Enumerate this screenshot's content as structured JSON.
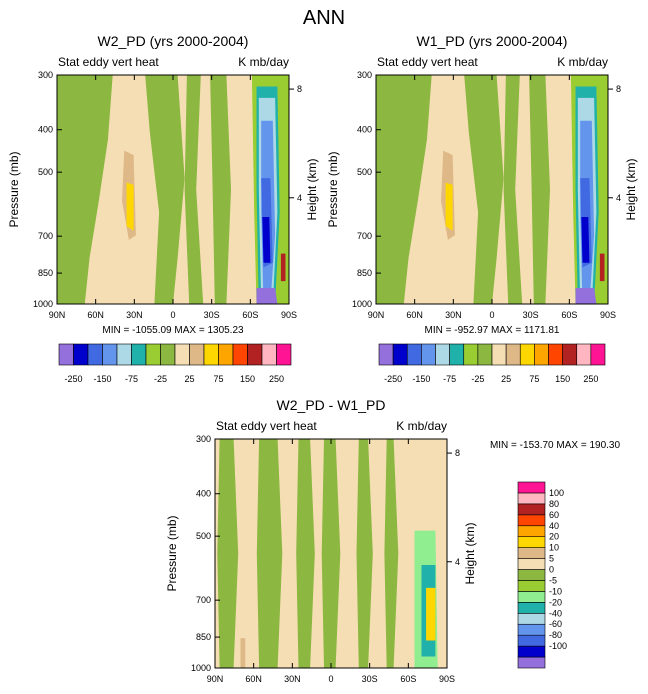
{
  "figure": {
    "title": "ANN"
  },
  "palettes": {
    "abs": [
      "#9370db",
      "#0000cd",
      "#4169e1",
      "#6495ed",
      "#add8e6",
      "#20b2aa",
      "#9acd32",
      "#8cb841",
      "#f5deb3",
      "#deb887",
      "#ffd700",
      "#ffa500",
      "#ff4500",
      "#b22222",
      "#ffb6c1",
      "#ff1493"
    ],
    "diff": [
      "#9370db",
      "#0000cd",
      "#4169e1",
      "#6495ed",
      "#add8e6",
      "#20b2aa",
      "#90ee90",
      "#9acd32",
      "#8cb841",
      "#f5deb3",
      "#deb887",
      "#ffd700",
      "#ffa500",
      "#ff4500",
      "#b22222",
      "#ffb6c1",
      "#ff1493"
    ]
  },
  "chart_data": [
    {
      "id": "p1",
      "type": "contour",
      "title": "W2_PD (yrs 2000-2004)",
      "subtitle_left": "Stat eddy vert heat",
      "subtitle_right": "K mb/day",
      "ylabel": "Pressure (mb)",
      "ylabel_right": "Height (km)",
      "xticks": [
        "90N",
        "60N",
        "30N",
        "0",
        "30S",
        "60S",
        "90S"
      ],
      "yticks": [
        "300",
        "400",
        "500",
        "700",
        "850",
        "1000"
      ],
      "ytick_values": [
        300,
        400,
        500,
        700,
        850,
        1000
      ],
      "ylim": [
        300,
        1000
      ],
      "right_ticks": [
        "8",
        "4"
      ],
      "right_tick_values_km": [
        8,
        4
      ],
      "minmax": "MIN = -1055.09   MAX = 1305.23",
      "colorbar_labels": [
        "-250",
        "-150",
        "-75",
        "-25",
        "25",
        "75",
        "150",
        "250"
      ],
      "levels": [
        -250,
        -200,
        -150,
        -100,
        -75,
        -50,
        -25,
        -10,
        10,
        25,
        50,
        75,
        100,
        150,
        200,
        250
      ]
    },
    {
      "id": "p2",
      "type": "contour",
      "title": "W1_PD (yrs 2000-2004)",
      "subtitle_left": "Stat eddy vert heat",
      "subtitle_right": "K mb/day",
      "ylabel": "Pressure (mb)",
      "ylabel_right": "Height (km)",
      "xticks": [
        "90N",
        "60N",
        "30N",
        "0",
        "30S",
        "60S",
        "90S"
      ],
      "yticks": [
        "300",
        "400",
        "500",
        "700",
        "850",
        "1000"
      ],
      "ytick_values": [
        300,
        400,
        500,
        700,
        850,
        1000
      ],
      "ylim": [
        300,
        1000
      ],
      "right_ticks": [
        "8",
        "4"
      ],
      "right_tick_values_km": [
        8,
        4
      ],
      "minmax": "MIN = -952.97   MAX = 1171.81",
      "colorbar_labels": [
        "-250",
        "-150",
        "-75",
        "-25",
        "25",
        "75",
        "150",
        "250"
      ],
      "levels": [
        -250,
        -200,
        -150,
        -100,
        -75,
        -50,
        -25,
        -10,
        10,
        25,
        50,
        75,
        100,
        150,
        200,
        250
      ]
    },
    {
      "id": "p3",
      "type": "contour",
      "title": "W2_PD - W1_PD",
      "subtitle_left": "Stat eddy vert heat",
      "subtitle_right": "K mb/day",
      "ylabel": "Pressure (mb)",
      "ylabel_right": "Height (km)",
      "xticks": [
        "90N",
        "60N",
        "30N",
        "0",
        "30S",
        "60S",
        "90S"
      ],
      "yticks": [
        "300",
        "400",
        "500",
        "700",
        "850",
        "1000"
      ],
      "ytick_values": [
        300,
        400,
        500,
        700,
        850,
        1000
      ],
      "ylim": [
        300,
        1000
      ],
      "right_ticks": [
        "8",
        "4"
      ],
      "right_tick_values_km": [
        8,
        4
      ],
      "minmax": "MIN = -153.70   MAX = 190.30",
      "colorbar_labels": [
        "100",
        "80",
        "60",
        "40",
        "20",
        "10",
        "5",
        "0",
        "-5",
        "-10",
        "-20",
        "-40",
        "-60",
        "-80",
        "-100"
      ],
      "levels": [
        -100,
        -80,
        -60,
        -40,
        -20,
        -10,
        -5,
        0,
        5,
        10,
        20,
        40,
        60,
        80,
        100
      ]
    }
  ]
}
